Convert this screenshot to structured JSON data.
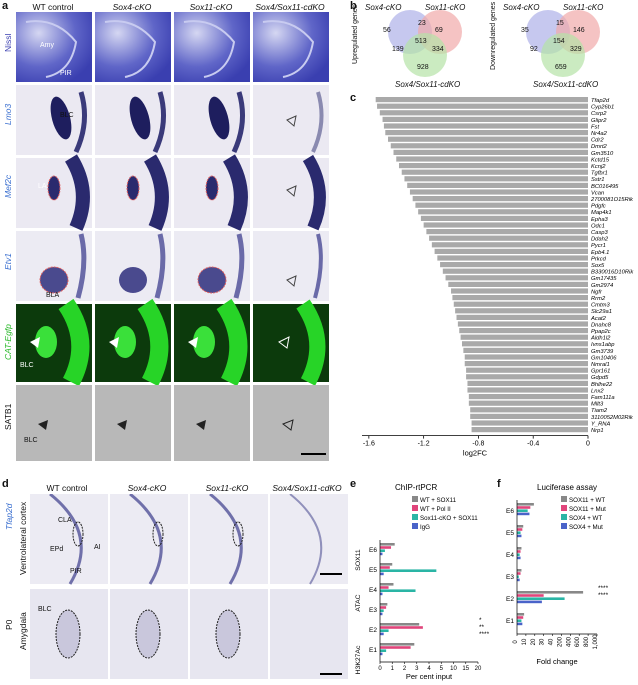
{
  "panels": {
    "a": "a",
    "b": "b",
    "c": "c",
    "d": "d",
    "e": "e",
    "f": "f"
  },
  "a": {
    "columns": [
      "WT control",
      "Sox4-cKO",
      "Sox11-cKO",
      "Sox4/Sox11-cdKO"
    ],
    "rows": [
      "Nissl",
      "Lmo3",
      "Mef2c",
      "Etv1",
      "CAT-Egfp",
      "SATB1"
    ],
    "annotations": {
      "amy": "Amy",
      "pir": "PIR",
      "blc": "BLC",
      "la": "LA",
      "bla": "BLA"
    }
  },
  "b": {
    "left": {
      "set1": "Sox4-cKO",
      "set2": "Sox11-cKO",
      "set3": "Sox4/Sox11-cdKO",
      "label": "Upregulated genes",
      "values": {
        "a_only": "56",
        "b_only": "69",
        "c_only": "928",
        "ab": "23",
        "abc": "513",
        "ac": "139",
        "bc": "334"
      }
    },
    "right": {
      "set1": "Sox4-cKO",
      "set2": "Sox11-cKO",
      "set3": "Sox4/Sox11-cdKO",
      "label": "Downregulated genes",
      "values": {
        "a_only": "35",
        "b_only": "146",
        "c_only": "659",
        "ab": "15",
        "abc": "154",
        "ac": "92",
        "bc": "329"
      }
    }
  },
  "chart_data": [
    {
      "type": "bar",
      "panel": "c",
      "orientation": "horizontal",
      "xlabel": "log2FC",
      "xticks": [
        "-1.6",
        "-1.2",
        "-0.8",
        "-0.4",
        "0"
      ],
      "xlim": [
        -1.65,
        0
      ],
      "categories": [
        "Tfap2d",
        "Cyp26b1",
        "Csrp2",
        "Glipr2",
        "Fst",
        "Nr4a2",
        "Cdr2",
        "Dmrt2",
        "Gm3510",
        "Kctd15",
        "Kcnj2",
        "Tgfbr1",
        "Sstr1",
        "BC016495",
        "Vcan",
        "2700081O15Rik",
        "Pdgfc",
        "Map4k1",
        "Epha3",
        "Odc1",
        "Casp3",
        "Ddah2",
        "Pycr1",
        "Epb4.1",
        "Prkcd",
        "Sox5",
        "B330016D10Rik",
        "Gm17435",
        "Gm2974",
        "Ngfr",
        "Rrm2",
        "Cmtm3",
        "Slc29a1",
        "Acat2",
        "Dnahc8",
        "Ppap2c",
        "Aldh1l2",
        "Ivns1abp",
        "Gm3739",
        "Gm10406",
        "Nmral1",
        "Gpr161",
        "Gdpd5",
        "Bhlhe22",
        "Lnx2",
        "Fam111a",
        "Mllt3",
        "Tiam2",
        "3110052M02Rik",
        "Y_RNA",
        "Nrp1"
      ],
      "values": [
        -1.55,
        -1.54,
        -1.52,
        -1.5,
        -1.49,
        -1.48,
        -1.46,
        -1.44,
        -1.42,
        -1.4,
        -1.38,
        -1.36,
        -1.34,
        -1.32,
        -1.3,
        -1.28,
        -1.26,
        -1.24,
        -1.22,
        -1.2,
        -1.18,
        -1.16,
        -1.14,
        -1.12,
        -1.1,
        -1.08,
        -1.06,
        -1.04,
        -1.02,
        -1.0,
        -0.99,
        -0.98,
        -0.97,
        -0.96,
        -0.95,
        -0.94,
        -0.93,
        -0.92,
        -0.91,
        -0.9,
        -0.9,
        -0.89,
        -0.89,
        -0.88,
        -0.88,
        -0.87,
        -0.87,
        -0.86,
        -0.86,
        -0.85,
        -0.85
      ]
    },
    {
      "type": "bar",
      "panel": "e",
      "orientation": "horizontal",
      "title": "ChIP-rtPCR",
      "xlabel": "Per cent input",
      "xticks": [
        "0",
        "1",
        "2",
        "3",
        "4",
        "5",
        "10",
        "15",
        "20"
      ],
      "categories": [
        "E6",
        "E5",
        "E4",
        "E3",
        "E2",
        "E1"
      ],
      "groups": [
        "SOX11",
        "ATAC",
        "H3K27Ac"
      ],
      "series": [
        {
          "name": "WT + SOX11",
          "color": "#888888",
          "values": [
            1.2,
            1.0,
            1.1,
            0.6,
            3.2,
            2.8
          ]
        },
        {
          "name": "WT + Pol II",
          "color": "#e0457b",
          "values": [
            0.9,
            0.8,
            0.7,
            0.5,
            3.5,
            2.5
          ]
        },
        {
          "name": "Sox11-cKO + SOX11",
          "color": "#2ab5a5",
          "values": [
            0.4,
            4.6,
            2.9,
            0.3,
            0.7,
            0.5
          ]
        },
        {
          "name": "IgG",
          "color": "#4a63c9",
          "values": [
            0.2,
            0.3,
            0.2,
            0.2,
            0.3,
            0.2
          ]
        }
      ],
      "sig": [
        "*",
        "**",
        "****"
      ]
    },
    {
      "type": "bar",
      "panel": "f",
      "orientation": "horizontal",
      "title": "Luciferase assay",
      "xlabel": "Fold change",
      "xticks": [
        "0",
        "10",
        "20",
        "30",
        "40",
        "200",
        "400",
        "600",
        "800",
        "1,000"
      ],
      "categories": [
        "E6",
        "E5",
        "E4",
        "E3",
        "E2",
        "E1"
      ],
      "series": [
        {
          "name": "SOX11 + WT",
          "color": "#888888",
          "values": [
            19,
            7,
            5,
            5,
            700,
            8
          ]
        },
        {
          "name": "SOX11 + Mut",
          "color": "#e0457b",
          "values": [
            15,
            6,
            4,
            4,
            30,
            7
          ]
        },
        {
          "name": "SOX4 + WT",
          "color": "#2ab5a5",
          "values": [
            12,
            4,
            3,
            2,
            300,
            5
          ]
        },
        {
          "name": "SOX4 + Mut",
          "color": "#4a63c9",
          "values": [
            14,
            5,
            4,
            3,
            28,
            6
          ]
        }
      ],
      "sig": [
        "****",
        "****"
      ]
    }
  ],
  "d": {
    "columns": [
      "WT control",
      "Sox4-cKO",
      "Sox11-cKO",
      "Sox4/Sox11-cdKO"
    ],
    "gene": "Tfap2d",
    "rows": [
      "Ventrolateral cortex",
      "Amygdala"
    ],
    "age": "P0",
    "annotations": {
      "cla": "CLA",
      "ai": "AI",
      "epd": "EPd",
      "pir": "PIR",
      "blc": "BLC"
    }
  },
  "colors": {
    "nissl": "#3a3fb0",
    "ish": "#2a2a6e",
    "gfp": "#27d427",
    "satb1": "#555555"
  }
}
